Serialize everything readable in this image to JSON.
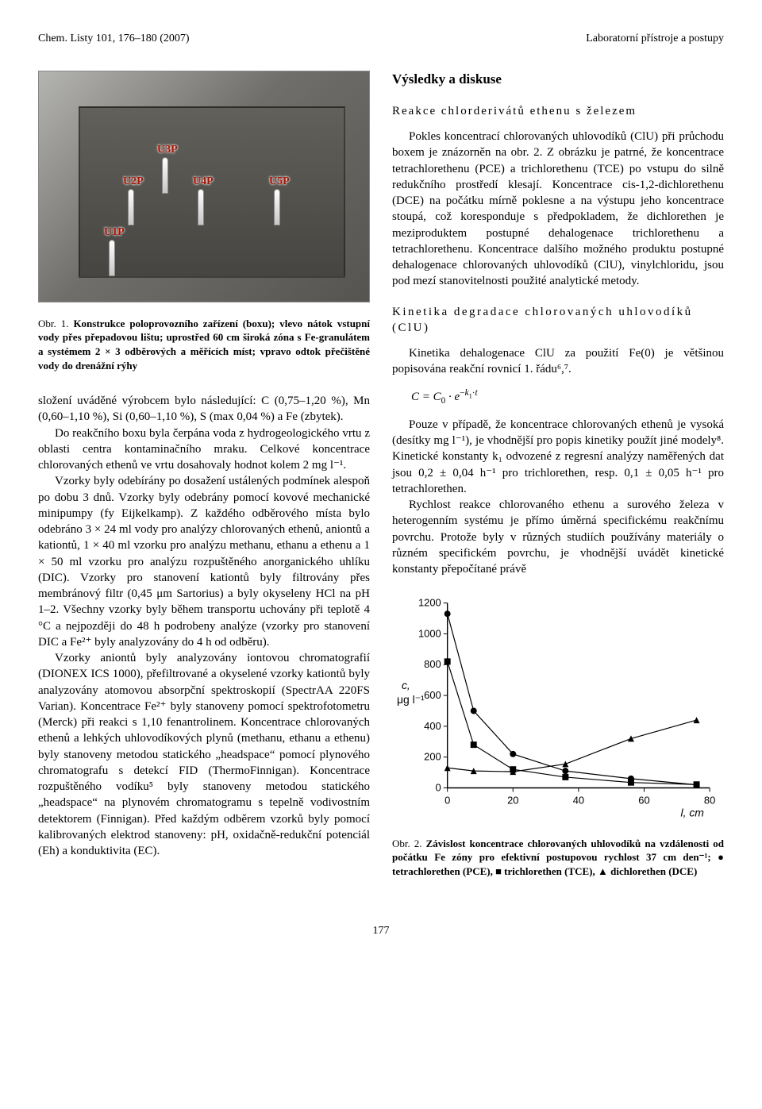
{
  "meta": {
    "journal_ref": "Chem. Listy 101, 176–180 (2007)",
    "right_header": "Laboratorní přístroje a postupy"
  },
  "left_col": {
    "figure1": {
      "pins": [
        "U3P",
        "U2P",
        "U4P",
        "U5P",
        "U1P"
      ],
      "caption_label": "Obr. 1.",
      "caption_text": "Konstrukce poloprovozního zařízení (boxu); vlevo nátok vstupní vody přes přepadovou lištu; uprostřed 60 cm široká zóna s Fe-granulátem a systémem 2 × 3 odběrových a měřících míst; vpravo odtok přečištěné vody do drenážní rýhy"
    },
    "p1": "složení uváděné výrobcem bylo následující: C (0,75–1,20 %), Mn (0,60–1,10 %), Si (0,60–1,10 %), S (max 0,04 %) a Fe (zbytek).",
    "p2": "Do reakčního boxu byla čerpána voda z hydrogeologického vrtu z oblasti centra kontaminačního mraku. Celkové koncentrace chlorovaných ethenů ve vrtu dosahovaly hodnot kolem 2 mg l⁻¹.",
    "p3": "Vzorky byly odebírány po dosažení ustálených podmínek alespoň po dobu 3 dnů. Vzorky byly odebrány pomocí kovové mechanické minipumpy (fy Eijkelkamp). Z každého odběrového místa bylo odebráno 3 × 24 ml vody pro analýzy chlorovaných ethenů, aniontů a kationtů, 1 × 40 ml vzorku pro analýzu methanu, ethanu a ethenu a 1 × 50 ml vzorku pro analýzu rozpuštěného anorganického uhlíku (DIC). Vzorky pro stanovení kationtů byly filtrovány přes membránový filtr (0,45 μm Sartorius) a byly okyseleny HCl na pH 1–2. Všechny vzorky byly během transportu uchovány při teplotě 4 °C a nejpozději do 48 h podrobeny analýze (vzorky pro stanovení DIC a Fe²⁺ byly analyzovány do 4 h od odběru).",
    "p4": "Vzorky aniontů byly analyzovány iontovou chromatografií (DIONEX ICS 1000), přefiltrované a okyselené vzorky kationtů byly analyzovány atomovou absorpční spektroskopií (SpectrAA 220FS Varian). Koncentrace Fe²⁺ byly stanoveny pomocí spektrofotometru (Merck) při reakci s 1,10 fenantrolinem. Koncentrace chlorovaných ethenů a lehkých uhlovodíkových plynů (methanu, ethanu a ethenu) byly stanoveny metodou statického „headspace“ pomocí plynového chromatografu s detekcí FID (ThermoFinnigan). Koncentrace rozpuštěného vodíku⁵ byly stanoveny metodou statického „headspace“ na plynovém chromatogramu s tepelně vodivostním detektorem (Finnigan). Před každým odběrem vzorků byly pomocí kalibrovaných elektrod stanoveny: pH, oxidačně-redukční potenciál (Eh) a konduktivita (EC)."
  },
  "right_col": {
    "section_title": "Výsledky a diskuse",
    "subsec1": "Reakce chlorderivátů ethenu s železem",
    "p1": "Pokles koncentrací chlorovaných uhlovodíků (ClU) při průchodu boxem je znázorněn na obr. 2. Z obrázku je patrné, že koncentrace tetrachlorethenu (PCE) a trichlorethenu (TCE) po vstupu do silně redukčního prostředí klesají. Koncentrace cis-1,2-dichlorethenu (DCE) na počátku mírně poklesne a na výstupu jeho koncentrace stoupá, což koresponduje s předpokladem, že dichlorethen je meziproduktem postupné dehalogenace trichlorethenu a tetrachlorethenu. Koncentrace dalšího možného produktu postupné dehalogenace chlorovaných uhlovodíků (ClU), vinylchloridu, jsou pod mezí stanovitelnosti použité analytické metody.",
    "subsec2": "Kinetika degradace chlorovaných uhlovodíků (ClU)",
    "p2": "Kinetika dehalogenace ClU za použití Fe(0) je většinou popisována reakční rovnicí 1. řádu⁶,⁷.",
    "equation": "C = C₀ · e^{−k₁·t}",
    "p3": "Pouze v případě, že koncentrace chlorovaných ethenů je vysoká (desítky mg l⁻¹), je vhodnější pro popis kinetiky použít jiné modely⁸. Kinetické konstanty k₁ odvozené z regresní analýzy naměřených dat jsou 0,2 ± 0,04 h⁻¹ pro trichlorethen, resp. 0,1 ± 0,05 h⁻¹ pro tetrachlorethen.",
    "p4": "Rychlost reakce chlorovaného ethenu a surového železa v heterogenním systému je přímo úměrná specifickému reakčnímu povrchu. Protože byly v různých studiích používány materiály o různém specifickém povrchu, je vhodnější uvádět kinetické konstanty přepočítané právě",
    "figure2": {
      "caption_label": "Obr. 2.",
      "caption_text": "Závislost koncentrace chlorovaných uhlovodíků na vzdálenosti od počátku Fe zóny pro efektivní postupovou rychlost 37 cm den⁻¹; ● tetrachlorethen (PCE), ■ trichlorethen (TCE), ▲ dichlorethen (DCE)"
    }
  },
  "chart": {
    "type": "line-scatter",
    "x_label": "l, cm",
    "y_label": "c, μg l⁻¹",
    "x_ticks": [
      0,
      20,
      40,
      60,
      80
    ],
    "y_ticks": [
      0,
      200,
      400,
      600,
      800,
      1000,
      1200
    ],
    "xlim": [
      0,
      80
    ],
    "ylim": [
      0,
      1200
    ],
    "label_fontsize": 14,
    "tick_fontsize": 13,
    "line_color": "#000000",
    "background_color": "#ffffff",
    "marker_size": 8,
    "marker_fill": "#000000",
    "line_width": 1.2,
    "series": [
      {
        "name": "PCE",
        "marker": "circle",
        "x": [
          0,
          8,
          20,
          36,
          56,
          76
        ],
        "y": [
          1130,
          500,
          220,
          110,
          60,
          20
        ]
      },
      {
        "name": "TCE",
        "marker": "square",
        "x": [
          0,
          8,
          20,
          36,
          56,
          76
        ],
        "y": [
          820,
          280,
          120,
          70,
          35,
          22
        ]
      },
      {
        "name": "DCE",
        "marker": "triangle",
        "x": [
          0,
          8,
          20,
          36,
          56,
          76
        ],
        "y": [
          130,
          110,
          105,
          155,
          320,
          440
        ]
      }
    ]
  },
  "page_number": "177"
}
